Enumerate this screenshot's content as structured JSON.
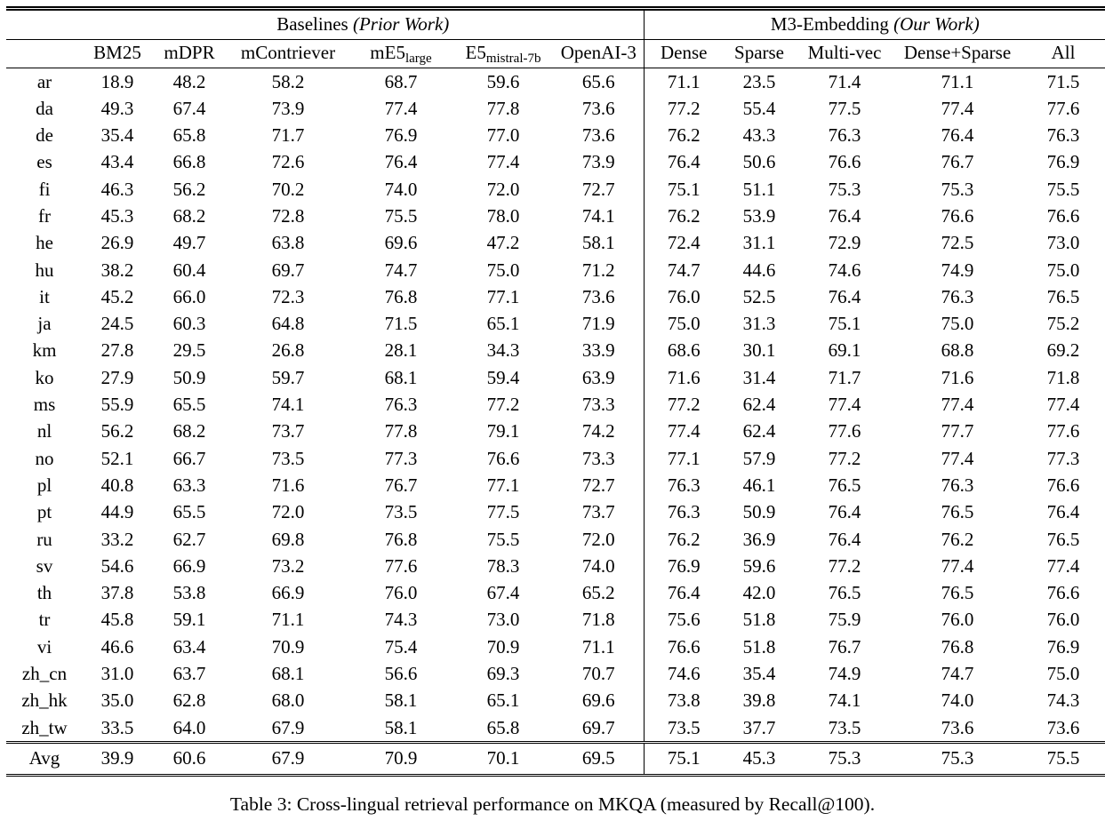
{
  "caption": "Table 3: Cross-lingual retrieval performance on MKQA (measured by Recall@100).",
  "table": {
    "groups": [
      {
        "title": "Baselines",
        "qualifier": "(Prior Work)"
      },
      {
        "title": "M3-Embedding",
        "qualifier": "(Our Work)"
      }
    ],
    "columns": [
      {
        "label": "BM25"
      },
      {
        "label": "mDPR"
      },
      {
        "label": "mContriever"
      },
      {
        "label": "mE5",
        "sub": "large"
      },
      {
        "label": "E5",
        "sub": "mistral-7b"
      },
      {
        "label": "OpenAI-3"
      },
      {
        "label": "Dense"
      },
      {
        "label": "Sparse"
      },
      {
        "label": "Multi-vec"
      },
      {
        "label": "Dense+Sparse"
      },
      {
        "label": "All"
      }
    ],
    "rows": [
      {
        "lang": "ar",
        "values": [
          "18.9",
          "48.2",
          "58.2",
          "68.7",
          "59.6",
          "65.6",
          "71.1",
          "23.5",
          "71.4",
          "71.1",
          "71.5"
        ],
        "bold": [
          10
        ]
      },
      {
        "lang": "da",
        "values": [
          "49.3",
          "67.4",
          "73.9",
          "77.4",
          "77.8",
          "73.6",
          "77.2",
          "55.4",
          "77.5",
          "77.4",
          "77.6"
        ],
        "bold": [
          4
        ]
      },
      {
        "lang": "de",
        "values": [
          "35.4",
          "65.8",
          "71.7",
          "76.9",
          "77.0",
          "73.6",
          "76.2",
          "43.3",
          "76.3",
          "76.4",
          "76.3"
        ],
        "bold": [
          4
        ]
      },
      {
        "lang": "es",
        "values": [
          "43.4",
          "66.8",
          "72.6",
          "76.4",
          "77.4",
          "73.9",
          "76.4",
          "50.6",
          "76.6",
          "76.7",
          "76.9"
        ],
        "bold": [
          4
        ]
      },
      {
        "lang": "fi",
        "values": [
          "46.3",
          "56.2",
          "70.2",
          "74.0",
          "72.0",
          "72.7",
          "75.1",
          "51.1",
          "75.3",
          "75.3",
          "75.5"
        ],
        "bold": [
          10
        ]
      },
      {
        "lang": "fr",
        "values": [
          "45.3",
          "68.2",
          "72.8",
          "75.5",
          "78.0",
          "74.1",
          "76.2",
          "53.9",
          "76.4",
          "76.6",
          "76.6"
        ],
        "bold": [
          4
        ]
      },
      {
        "lang": "he",
        "values": [
          "26.9",
          "49.7",
          "63.8",
          "69.6",
          "47.2",
          "58.1",
          "72.4",
          "31.1",
          "72.9",
          "72.5",
          "73.0"
        ],
        "bold": [
          10
        ]
      },
      {
        "lang": "hu",
        "values": [
          "38.2",
          "60.4",
          "69.7",
          "74.7",
          "75.0",
          "71.2",
          "74.7",
          "44.6",
          "74.6",
          "74.9",
          "75.0"
        ],
        "bold": [
          4,
          10
        ]
      },
      {
        "lang": "it",
        "values": [
          "45.2",
          "66.0",
          "72.3",
          "76.8",
          "77.1",
          "73.6",
          "76.0",
          "52.5",
          "76.4",
          "76.3",
          "76.5"
        ],
        "bold": [
          4
        ]
      },
      {
        "lang": "ja",
        "values": [
          "24.5",
          "60.3",
          "64.8",
          "71.5",
          "65.1",
          "71.9",
          "75.0",
          "31.3",
          "75.1",
          "75.0",
          "75.2"
        ],
        "bold": [
          10
        ]
      },
      {
        "lang": "km",
        "values": [
          "27.8",
          "29.5",
          "26.8",
          "28.1",
          "34.3",
          "33.9",
          "68.6",
          "30.1",
          "69.1",
          "68.8",
          "69.2"
        ],
        "bold": [
          10
        ]
      },
      {
        "lang": "ko",
        "values": [
          "27.9",
          "50.9",
          "59.7",
          "68.1",
          "59.4",
          "63.9",
          "71.6",
          "31.4",
          "71.7",
          "71.6",
          "71.8"
        ],
        "bold": [
          10
        ]
      },
      {
        "lang": "ms",
        "values": [
          "55.9",
          "65.5",
          "74.1",
          "76.3",
          "77.2",
          "73.3",
          "77.2",
          "62.4",
          "77.4",
          "77.4",
          "77.4"
        ],
        "bold": [
          8,
          9,
          10
        ]
      },
      {
        "lang": "nl",
        "values": [
          "56.2",
          "68.2",
          "73.7",
          "77.8",
          "79.1",
          "74.2",
          "77.4",
          "62.4",
          "77.6",
          "77.7",
          "77.6"
        ],
        "bold": [
          4
        ]
      },
      {
        "lang": "no",
        "values": [
          "52.1",
          "66.7",
          "73.5",
          "77.3",
          "76.6",
          "73.3",
          "77.1",
          "57.9",
          "77.2",
          "77.4",
          "77.3"
        ],
        "bold": [
          9
        ]
      },
      {
        "lang": "pl",
        "values": [
          "40.8",
          "63.3",
          "71.6",
          "76.7",
          "77.1",
          "72.7",
          "76.3",
          "46.1",
          "76.5",
          "76.3",
          "76.6"
        ],
        "bold": [
          4
        ]
      },
      {
        "lang": "pt",
        "values": [
          "44.9",
          "65.5",
          "72.0",
          "73.5",
          "77.5",
          "73.7",
          "76.3",
          "50.9",
          "76.4",
          "76.5",
          "76.4"
        ],
        "bold": [
          4
        ]
      },
      {
        "lang": "ru",
        "values": [
          "33.2",
          "62.7",
          "69.8",
          "76.8",
          "75.5",
          "72.0",
          "76.2",
          "36.9",
          "76.4",
          "76.2",
          "76.5"
        ],
        "bold": [
          3
        ]
      },
      {
        "lang": "sv",
        "values": [
          "54.6",
          "66.9",
          "73.2",
          "77.6",
          "78.3",
          "74.0",
          "76.9",
          "59.6",
          "77.2",
          "77.4",
          "77.4"
        ],
        "bold": [
          4
        ]
      },
      {
        "lang": "th",
        "values": [
          "37.8",
          "53.8",
          "66.9",
          "76.0",
          "67.4",
          "65.2",
          "76.4",
          "42.0",
          "76.5",
          "76.5",
          "76.6"
        ],
        "bold": [
          10
        ]
      },
      {
        "lang": "tr",
        "values": [
          "45.8",
          "59.1",
          "71.1",
          "74.3",
          "73.0",
          "71.8",
          "75.6",
          "51.8",
          "75.9",
          "76.0",
          "76.0"
        ],
        "bold": [
          9,
          10
        ]
      },
      {
        "lang": "vi",
        "values": [
          "46.6",
          "63.4",
          "70.9",
          "75.4",
          "70.9",
          "71.1",
          "76.6",
          "51.8",
          "76.7",
          "76.8",
          "76.9"
        ],
        "bold": [
          10
        ]
      },
      {
        "lang": "zh_cn",
        "values": [
          "31.0",
          "63.7",
          "68.1",
          "56.6",
          "69.3",
          "70.7",
          "74.6",
          "35.4",
          "74.9",
          "74.7",
          "75.0"
        ],
        "bold": [
          10
        ]
      },
      {
        "lang": "zh_hk",
        "values": [
          "35.0",
          "62.8",
          "68.0",
          "58.1",
          "65.1",
          "69.6",
          "73.8",
          "39.8",
          "74.1",
          "74.0",
          "74.3"
        ],
        "bold": [
          10
        ]
      },
      {
        "lang": "zh_tw",
        "values": [
          "33.5",
          "64.0",
          "67.9",
          "58.1",
          "65.8",
          "69.7",
          "73.5",
          "37.7",
          "73.5",
          "73.6",
          "73.6"
        ],
        "bold": [
          9,
          10
        ]
      }
    ],
    "avg_row": {
      "lang": "Avg",
      "values": [
        "39.9",
        "60.6",
        "67.9",
        "70.9",
        "70.1",
        "69.5",
        "75.1",
        "45.3",
        "75.3",
        "75.3",
        "75.5"
      ],
      "bold": [
        10
      ]
    }
  }
}
